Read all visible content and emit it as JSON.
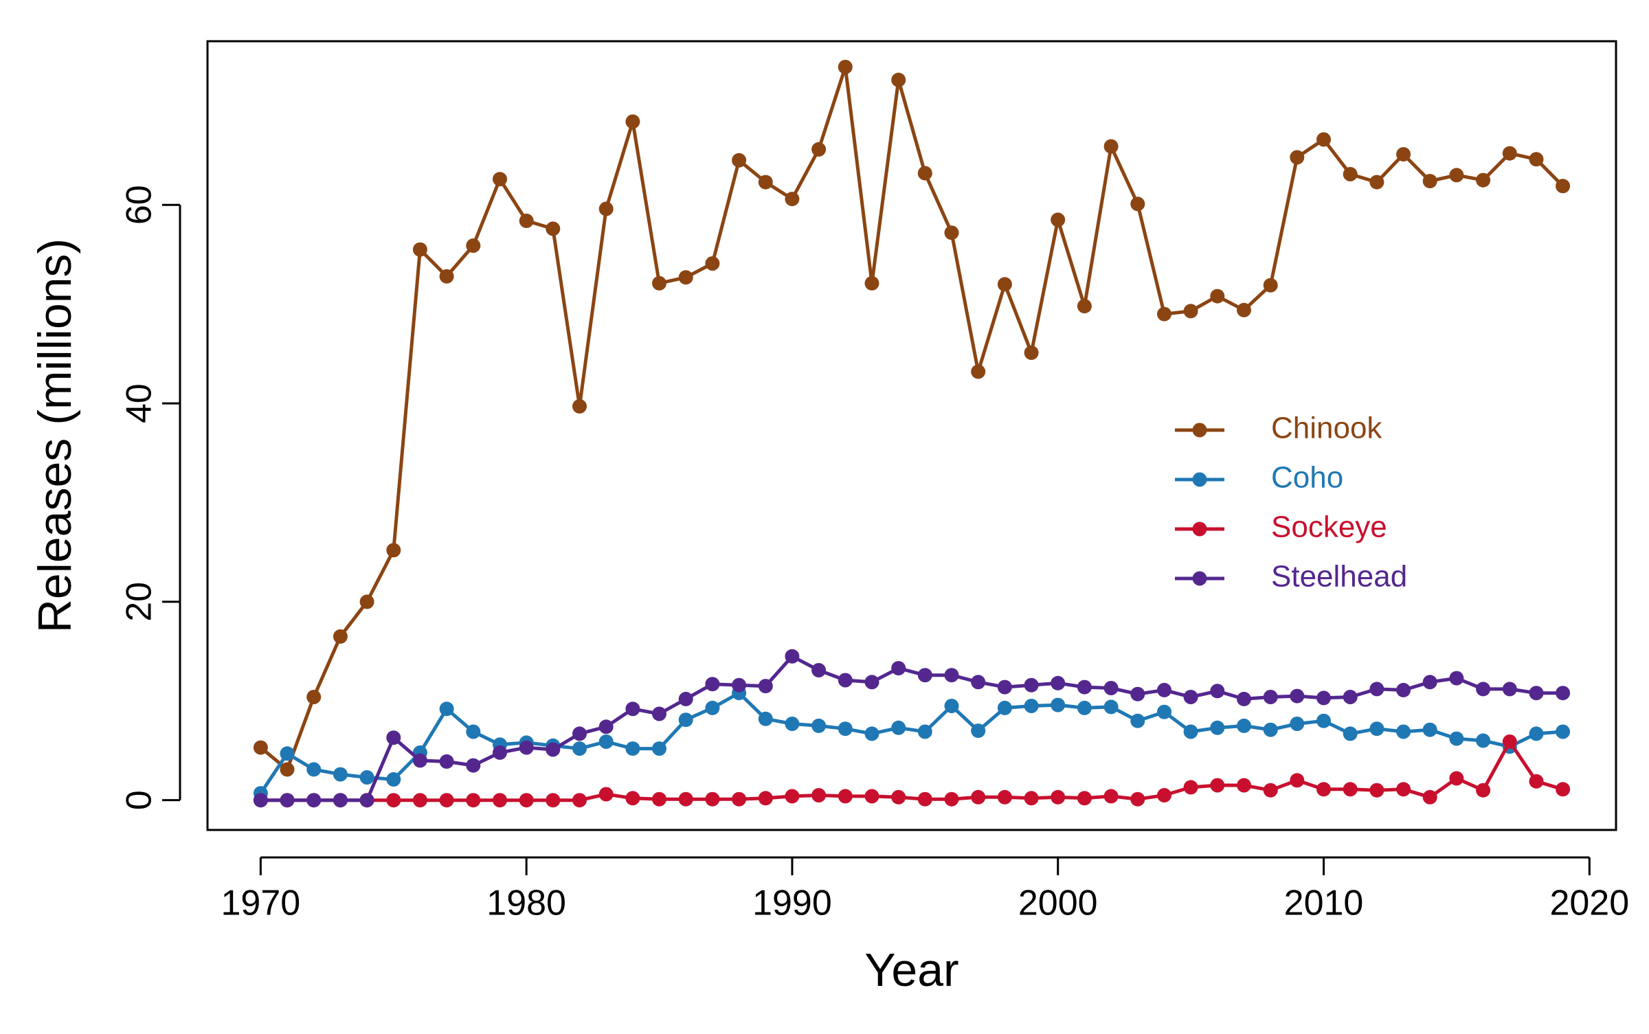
{
  "chart_data": {
    "type": "line",
    "title": "",
    "xlabel": "Year",
    "ylabel": "Releases (millions)",
    "xlim": [
      1968,
      2021
    ],
    "ylim": [
      -3,
      76.5
    ],
    "x_ticks": [
      1970,
      1980,
      1990,
      2000,
      2010,
      2020
    ],
    "x_tick_labels": [
      "1970",
      "1980",
      "1990",
      "2000",
      "2010",
      "2020"
    ],
    "y_ticks": [
      0,
      20,
      40,
      60
    ],
    "y_tick_labels": [
      "0",
      "20",
      "40",
      "60"
    ],
    "grid": false,
    "legend_position": "center-right",
    "x": [
      1970,
      1971,
      1972,
      1973,
      1974,
      1975,
      1976,
      1977,
      1978,
      1979,
      1980,
      1981,
      1982,
      1983,
      1984,
      1985,
      1986,
      1987,
      1988,
      1989,
      1990,
      1991,
      1992,
      1993,
      1994,
      1995,
      1996,
      1997,
      1998,
      1999,
      2000,
      2001,
      2002,
      2003,
      2004,
      2005,
      2006,
      2007,
      2008,
      2009,
      2010,
      2011,
      2012,
      2013,
      2014,
      2015,
      2016,
      2017,
      2018,
      2019
    ],
    "series": [
      {
        "name": "Chinook",
        "color": "#8B4513",
        "values": [
          5.3,
          3.1,
          10.4,
          16.5,
          20.0,
          25.2,
          55.5,
          52.8,
          55.9,
          62.6,
          58.4,
          57.6,
          39.7,
          59.6,
          68.4,
          52.1,
          52.7,
          54.1,
          64.5,
          62.3,
          60.6,
          65.6,
          73.9,
          52.1,
          72.6,
          63.2,
          57.2,
          43.2,
          52.0,
          45.1,
          58.5,
          49.8,
          65.9,
          60.1,
          49.0,
          49.3,
          50.8,
          49.4,
          51.9,
          64.8,
          66.6,
          63.1,
          62.3,
          65.1,
          62.4,
          63.0,
          62.5,
          65.2,
          64.6,
          61.9
        ]
      },
      {
        "name": "Coho",
        "color": "#1F78B4",
        "values": [
          0.7,
          4.7,
          3.1,
          2.6,
          2.3,
          2.1,
          4.8,
          9.2,
          6.9,
          5.6,
          5.8,
          5.5,
          5.2,
          5.9,
          5.2,
          5.2,
          8.1,
          9.3,
          10.8,
          8.2,
          7.7,
          7.5,
          7.2,
          6.7,
          7.3,
          6.9,
          9.5,
          7.0,
          9.3,
          9.5,
          9.6,
          9.3,
          9.4,
          8.0,
          8.9,
          6.9,
          7.3,
          7.5,
          7.1,
          7.7,
          8.0,
          6.7,
          7.2,
          6.9,
          7.1,
          6.2,
          6.0,
          5.4,
          6.7,
          6.9
        ]
      },
      {
        "name": "Sockeye",
        "color": "#C8102E",
        "values": [
          0.0,
          0.0,
          0.0,
          0.0,
          0.0,
          0.0,
          0.0,
          0.0,
          0.0,
          0.0,
          0.0,
          0.0,
          0.0,
          0.6,
          0.2,
          0.1,
          0.1,
          0.1,
          0.1,
          0.2,
          0.4,
          0.5,
          0.4,
          0.4,
          0.3,
          0.1,
          0.1,
          0.3,
          0.3,
          0.2,
          0.3,
          0.2,
          0.4,
          0.1,
          0.5,
          1.3,
          1.5,
          1.5,
          1.0,
          2.0,
          1.1,
          1.1,
          1.0,
          1.1,
          0.3,
          2.2,
          1.0,
          5.9,
          1.9,
          1.1
        ]
      },
      {
        "name": "Steelhead",
        "color": "#54278F",
        "values": [
          0.0,
          0.0,
          0.0,
          0.0,
          0.0,
          6.3,
          4.0,
          3.9,
          3.5,
          4.8,
          5.3,
          5.1,
          6.7,
          7.4,
          9.2,
          8.7,
          10.2,
          11.7,
          11.6,
          11.5,
          14.5,
          13.1,
          12.1,
          11.9,
          13.3,
          12.6,
          12.6,
          11.9,
          11.4,
          11.6,
          11.8,
          11.4,
          11.3,
          10.7,
          11.1,
          10.4,
          11.0,
          10.2,
          10.4,
          10.5,
          10.3,
          10.4,
          11.2,
          11.1,
          11.9,
          12.3,
          11.2,
          11.2,
          10.8,
          10.8
        ]
      }
    ]
  }
}
